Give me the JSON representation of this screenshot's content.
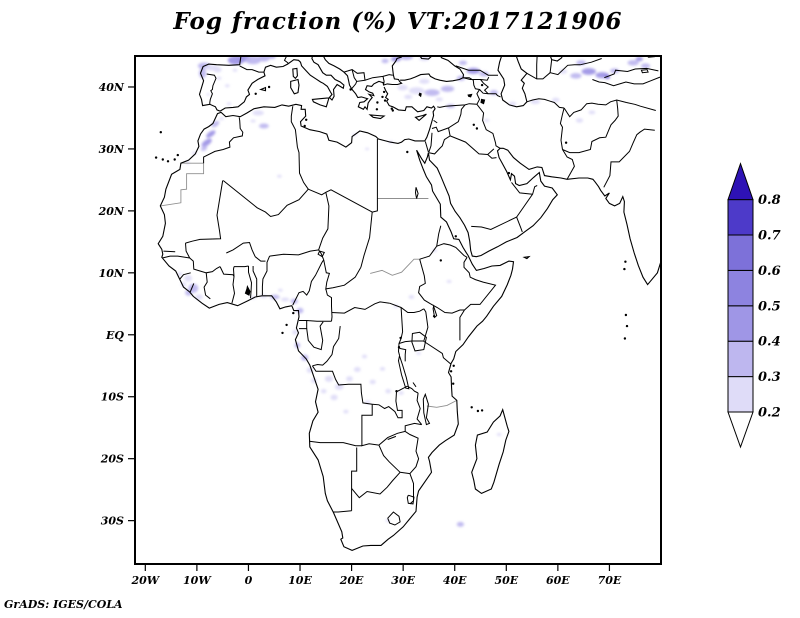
{
  "title": "Fog fraction (%) VT:2017121906",
  "credit": "GrADS: IGES/COLA",
  "chart_data": {
    "type": "heatmap",
    "title": "Fog fraction (%) VT:2017121906",
    "variable": "Fog fraction",
    "units": "%",
    "valid_time": "2017121906",
    "projection": "latlon",
    "grid": false,
    "lon_range": [
      -22,
      80
    ],
    "lat_range": [
      -37,
      45
    ],
    "x_ticks": [
      {
        "value": -20,
        "label": "20W"
      },
      {
        "value": -10,
        "label": "10W"
      },
      {
        "value": 0,
        "label": "0"
      },
      {
        "value": 10,
        "label": "10E"
      },
      {
        "value": 20,
        "label": "20E"
      },
      {
        "value": 30,
        "label": "30E"
      },
      {
        "value": 40,
        "label": "40E"
      },
      {
        "value": 50,
        "label": "50E"
      },
      {
        "value": 60,
        "label": "60E"
      },
      {
        "value": 70,
        "label": "70E"
      }
    ],
    "y_ticks": [
      {
        "value": 40,
        "label": "40N"
      },
      {
        "value": 30,
        "label": "30N"
      },
      {
        "value": 20,
        "label": "20N"
      },
      {
        "value": 10,
        "label": "10N"
      },
      {
        "value": 0,
        "label": "EQ"
      },
      {
        "value": -10,
        "label": "10S"
      },
      {
        "value": -20,
        "label": "20S"
      },
      {
        "value": -30,
        "label": "30S"
      }
    ],
    "colorbar": {
      "orientation": "vertical",
      "levels": [
        0.2,
        0.3,
        0.4,
        0.5,
        0.6,
        0.7,
        0.8
      ],
      "labels": [
        "0.2",
        "0.3",
        "0.4",
        "0.5",
        "0.6",
        "0.7",
        "0.8"
      ],
      "segment_colors": [
        "#dfdcf8",
        "#beb7ef",
        "#9f96e6",
        "#8d83e0",
        "#7d71d9",
        "#4d3ac9"
      ],
      "under_color": "#ffffff",
      "over_color": "#2e12b5"
    },
    "line_color": "#000000",
    "gray_border_color": "#8f8f8f",
    "fog_patches": [
      [
        -8.6,
        43.4,
        2.4,
        1.1,
        0,
        1
      ],
      [
        -7.2,
        43.1,
        2.6,
        0.9,
        0,
        0
      ],
      [
        -8.9,
        42.2,
        1.4,
        1.6,
        0,
        1
      ],
      [
        -6.0,
        42.8,
        1.6,
        0.9,
        0,
        0
      ],
      [
        -2.4,
        44.3,
        3.2,
        1.4,
        0,
        2
      ],
      [
        -0.8,
        44.6,
        2.6,
        1.1,
        0,
        2
      ],
      [
        0.9,
        44.3,
        3.0,
        1.3,
        0,
        1
      ],
      [
        2.9,
        44.6,
        2.4,
        1.0,
        0,
        1
      ],
      [
        4.5,
        44.9,
        1.6,
        0.8,
        0,
        1
      ],
      [
        -4.1,
        40.2,
        0.9,
        0.5,
        0,
        0
      ],
      [
        -5.7,
        41.4,
        0.9,
        0.5,
        0,
        0
      ],
      [
        -2.6,
        42.7,
        0.9,
        0.5,
        0,
        0
      ],
      [
        -3.8,
        37.3,
        0.8,
        0.5,
        0,
        0
      ],
      [
        -7.8,
        38.8,
        0.7,
        0.4,
        0,
        0
      ],
      [
        -6.4,
        34.0,
        1.7,
        0.8,
        -35,
        1
      ],
      [
        -7.3,
        32.4,
        2.1,
        0.8,
        -35,
        2
      ],
      [
        -8.1,
        31.0,
        2.3,
        0.9,
        -35,
        2
      ],
      [
        -8.6,
        30.1,
        1.3,
        0.7,
        -35,
        1
      ],
      [
        -5.2,
        34.9,
        0.9,
        0.5,
        0,
        0
      ],
      [
        -10.5,
        29.3,
        0.9,
        0.5,
        0,
        0
      ],
      [
        -11.8,
        27.8,
        0.8,
        0.5,
        0,
        0
      ],
      [
        1.9,
        35.8,
        2.2,
        0.8,
        0,
        0
      ],
      [
        3.0,
        33.7,
        1.9,
        0.8,
        0,
        1
      ],
      [
        0.9,
        34.5,
        1.0,
        0.5,
        0,
        0
      ],
      [
        6.0,
        25.6,
        0.9,
        0.5,
        0,
        0
      ],
      [
        20.6,
        32.3,
        0.9,
        0.4,
        0,
        0
      ],
      [
        27.6,
        31.1,
        1.0,
        0.4,
        0,
        0
      ],
      [
        23.0,
        30.0,
        0.8,
        0.4,
        0,
        0
      ],
      [
        29.9,
        39.9,
        2.0,
        0.9,
        0,
        0
      ],
      [
        32.6,
        39.4,
        3.0,
        1.1,
        0,
        0
      ],
      [
        35.6,
        39.1,
        3.0,
        1.1,
        0,
        1
      ],
      [
        38.6,
        39.7,
        2.6,
        1.0,
        0,
        1
      ],
      [
        34.1,
        40.9,
        2.0,
        0.8,
        0,
        0
      ],
      [
        31.0,
        38.4,
        1.6,
        0.7,
        0,
        0
      ],
      [
        37.0,
        38.0,
        1.4,
        0.6,
        0,
        0
      ],
      [
        39.2,
        36.9,
        1.7,
        0.6,
        0,
        1
      ],
      [
        41.2,
        41.4,
        1.6,
        0.8,
        0,
        1
      ],
      [
        43.6,
        42.6,
        2.6,
        1.0,
        0,
        2
      ],
      [
        45.7,
        42.1,
        1.9,
        0.8,
        0,
        1
      ],
      [
        41.6,
        43.9,
        1.6,
        0.7,
        0,
        1
      ],
      [
        47.6,
        39.1,
        1.6,
        0.8,
        0,
        1
      ],
      [
        28.6,
        44.5,
        1.9,
        0.8,
        0,
        2
      ],
      [
        30.6,
        44.8,
        2.6,
        0.9,
        0,
        1
      ],
      [
        34.1,
        44.6,
        2.0,
        0.8,
        0,
        0
      ],
      [
        26.5,
        44.2,
        1.4,
        0.7,
        0,
        1
      ],
      [
        51.2,
        37.3,
        1.6,
        0.6,
        0,
        0
      ],
      [
        55.6,
        37.6,
        1.9,
        0.7,
        0,
        0
      ],
      [
        59.6,
        37.9,
        1.5,
        0.7,
        0,
        0
      ],
      [
        46.2,
        34.6,
        1.1,
        0.5,
        0,
        0
      ],
      [
        64.2,
        34.6,
        1.4,
        0.7,
        0,
        0
      ],
      [
        66.6,
        35.9,
        1.3,
        0.6,
        0,
        0
      ],
      [
        63.5,
        41.8,
        2.2,
        0.9,
        0,
        1
      ],
      [
        66.0,
        42.5,
        2.8,
        1.1,
        0,
        2
      ],
      [
        68.6,
        41.9,
        2.6,
        1.0,
        0,
        2
      ],
      [
        69.6,
        41.6,
        1.0,
        0.6,
        0,
        4
      ],
      [
        71.0,
        42.6,
        1.8,
        0.8,
        0,
        1
      ],
      [
        64.5,
        43.9,
        1.9,
        0.8,
        0,
        1
      ],
      [
        61.0,
        42.5,
        1.6,
        0.7,
        0,
        0
      ],
      [
        74.6,
        43.9,
        2.2,
        0.9,
        0,
        1
      ],
      [
        77.0,
        43.4,
        1.8,
        0.8,
        0,
        1
      ],
      [
        75.8,
        44.5,
        1.4,
        0.7,
        0,
        2
      ],
      [
        -11.7,
        9.1,
        1.5,
        1.1,
        0,
        0
      ],
      [
        -10.7,
        7.5,
        1.9,
        1.5,
        0,
        1
      ],
      [
        -11.6,
        6.8,
        1.3,
        1.0,
        0,
        1
      ],
      [
        -9.6,
        6.1,
        1.5,
        0.9,
        0,
        0
      ],
      [
        -12.6,
        8.1,
        1.0,
        0.8,
        0,
        0
      ],
      [
        -13.3,
        9.8,
        0.9,
        0.6,
        0,
        0
      ],
      [
        0.9,
        6.0,
        1.3,
        0.5,
        0,
        0
      ],
      [
        2.9,
        6.2,
        1.5,
        0.5,
        0,
        0
      ],
      [
        5.1,
        6.1,
        1.9,
        0.7,
        0,
        1
      ],
      [
        7.1,
        5.7,
        1.6,
        0.6,
        0,
        0
      ],
      [
        8.9,
        5.4,
        1.4,
        0.8,
        0,
        1
      ],
      [
        6.2,
        7.2,
        0.9,
        0.5,
        0,
        0
      ],
      [
        10.0,
        3.9,
        1.3,
        0.9,
        0,
        1
      ],
      [
        9.0,
        0.4,
        1.0,
        0.8,
        0,
        0
      ],
      [
        9.5,
        -1.7,
        1.1,
        0.9,
        0,
        1
      ],
      [
        10.9,
        -3.7,
        1.4,
        1.0,
        0,
        1
      ],
      [
        11.9,
        -5.7,
        1.2,
        0.9,
        0,
        0
      ],
      [
        12.7,
        -7.4,
        1.1,
        0.8,
        0,
        0
      ],
      [
        15.6,
        -7.1,
        1.6,
        1.0,
        0,
        0
      ],
      [
        17.6,
        -8.4,
        1.7,
        1.0,
        0,
        0
      ],
      [
        19.6,
        -7.1,
        1.3,
        0.8,
        0,
        0
      ],
      [
        16.6,
        -10.1,
        1.4,
        0.9,
        0,
        0
      ],
      [
        14.6,
        -9.1,
        1.1,
        0.7,
        0,
        0
      ],
      [
        21.1,
        -5.6,
        1.3,
        0.8,
        0,
        0
      ],
      [
        24.1,
        -7.6,
        1.2,
        0.7,
        0,
        0
      ],
      [
        27.1,
        -9.1,
        1.1,
        0.7,
        0,
        0
      ],
      [
        29.6,
        -9.4,
        1.0,
        0.6,
        0,
        0
      ],
      [
        23.1,
        -10.9,
        1.1,
        0.6,
        0,
        0
      ],
      [
        18.9,
        -12.4,
        1.0,
        0.6,
        0,
        0
      ],
      [
        22.5,
        -3.5,
        1.0,
        0.6,
        0,
        0
      ],
      [
        26.0,
        -5.5,
        1.0,
        0.6,
        0,
        0
      ],
      [
        31.6,
        6.1,
        1.1,
        0.6,
        0,
        0
      ],
      [
        28.6,
        4.6,
        0.9,
        0.5,
        0,
        0
      ],
      [
        38.9,
        8.6,
        1.0,
        0.5,
        0,
        0
      ],
      [
        36.1,
        13.6,
        0.9,
        0.5,
        0,
        0
      ],
      [
        33.0,
        -3.0,
        0.9,
        0.5,
        0,
        0
      ],
      [
        41.1,
        -30.6,
        1.4,
        0.8,
        0,
        1
      ],
      [
        48.6,
        -16.1,
        0.9,
        0.5,
        0,
        0
      ],
      [
        27.0,
        -30.0,
        0.8,
        0.5,
        0,
        0
      ]
    ]
  }
}
